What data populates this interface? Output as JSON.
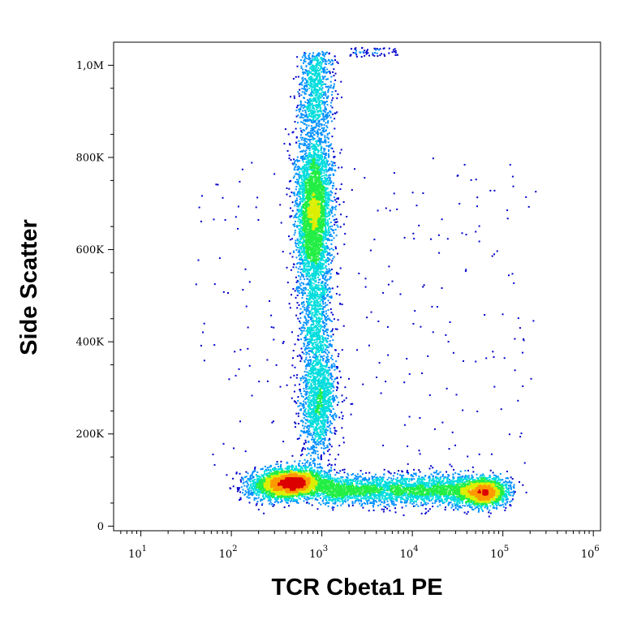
{
  "chart_data": {
    "type": "scatter",
    "plot_style": "flow-cytometry density dot plot",
    "xlabel": "TCR Cbeta1 PE",
    "ylabel": "Side Scatter",
    "x_scale": "log",
    "xlim": [
      5,
      1200000
    ],
    "ylim": [
      -10000,
      1050000
    ],
    "x_ticks": [
      {
        "value": 10,
        "base": "10",
        "exp": "1"
      },
      {
        "value": 100,
        "base": "10",
        "exp": "2"
      },
      {
        "value": 1000,
        "base": "10",
        "exp": "3"
      },
      {
        "value": 10000,
        "base": "10",
        "exp": "4"
      },
      {
        "value": 100000,
        "base": "10",
        "exp": "5"
      },
      {
        "value": 1000000,
        "base": "10",
        "exp": "6"
      }
    ],
    "y_ticks": [
      {
        "value": 0,
        "label": "0"
      },
      {
        "value": 200000,
        "label": "200K"
      },
      {
        "value": 400000,
        "label": "400K"
      },
      {
        "value": 600000,
        "label": "600K"
      },
      {
        "value": 800000,
        "label": "800K"
      },
      {
        "value": 1000000,
        "label": "1,0M"
      }
    ],
    "populations": [
      {
        "x_center": 800,
        "y_center": 680000,
        "relative_density": "high"
      },
      {
        "x_center": 900,
        "y_center": 280000,
        "relative_density": "medium"
      },
      {
        "x_center": 500,
        "y_center": 95000,
        "relative_density": "high"
      },
      {
        "x_center": 8000,
        "y_center": 80000,
        "relative_density": "medium"
      },
      {
        "x_center": 60000,
        "y_center": 75000,
        "relative_density": "high"
      }
    ],
    "density_colors": [
      "#0000cc",
      "#0090ff",
      "#00dddd",
      "#22ee44",
      "#ddee00",
      "#ff9900",
      "#dd0000"
    ],
    "grid": false,
    "legend": "none"
  }
}
